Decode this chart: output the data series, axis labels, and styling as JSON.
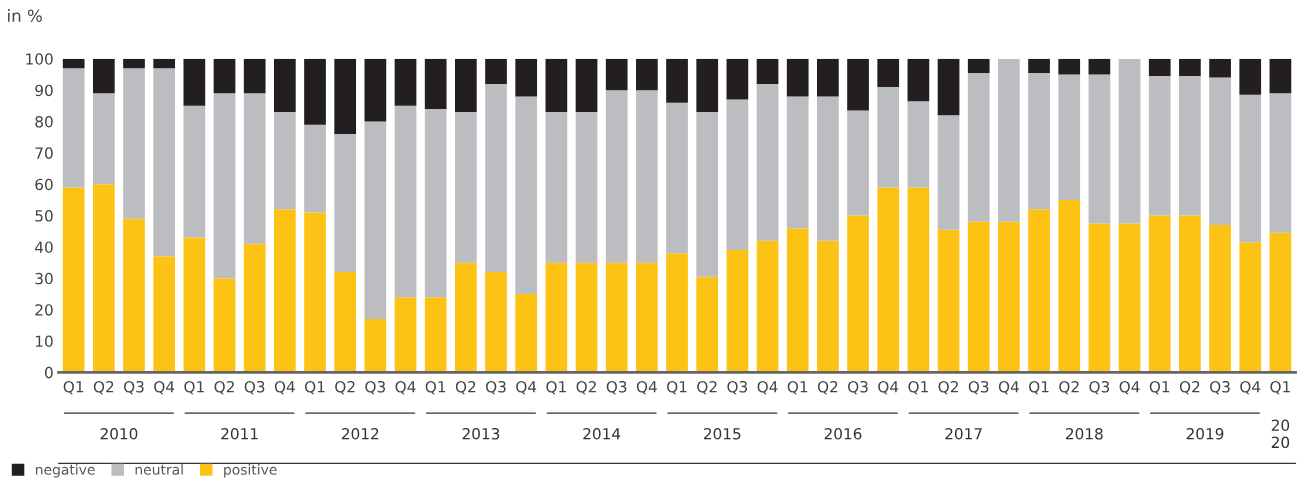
{
  "chart_data": {
    "type": "bar",
    "stacked": true,
    "ylabel": "in %",
    "categories": [
      "Q1",
      "Q2",
      "Q3",
      "Q4",
      "Q1",
      "Q2",
      "Q3",
      "Q4",
      "Q1",
      "Q2",
      "Q3",
      "Q4",
      "Q1",
      "Q2",
      "Q3",
      "Q4",
      "Q1",
      "Q2",
      "Q3",
      "Q4",
      "Q1",
      "Q2",
      "Q3",
      "Q4",
      "Q1",
      "Q2",
      "Q3",
      "Q4",
      "Q1",
      "Q2",
      "Q3",
      "Q4",
      "Q1",
      "Q2",
      "Q3",
      "Q4",
      "Q1",
      "Q2",
      "Q3",
      "Q4",
      "Q1"
    ],
    "series": [
      {
        "name": "positive",
        "color": "#fdc314",
        "values": [
          59,
          60,
          49,
          37,
          43,
          30,
          41,
          52,
          51,
          32,
          17,
          24,
          24,
          35,
          32,
          25,
          35,
          35,
          35,
          35,
          38,
          30.5,
          39,
          42,
          46,
          42,
          50,
          59,
          59,
          45.5,
          48,
          48,
          52,
          55,
          47.5,
          47.5,
          50,
          50,
          47,
          41.5,
          44.5
        ]
      },
      {
        "name": "neutral",
        "color": "#bcbdc1",
        "values": [
          38,
          29,
          48,
          60,
          42,
          59,
          48,
          31,
          28,
          44,
          63,
          61,
          60,
          48,
          60,
          63,
          48,
          48,
          55,
          55,
          48,
          52.5,
          48,
          50,
          42,
          46,
          33.5,
          32,
          27.5,
          36.5,
          47.5,
          52,
          43.5,
          40,
          47.5,
          52.5,
          44.5,
          44.5,
          47,
          47,
          44.5
        ]
      },
      {
        "name": "negative",
        "color": "#231f20",
        "values": [
          3,
          11,
          3,
          3,
          15,
          11,
          11,
          17,
          21,
          24,
          20,
          15,
          16,
          17,
          8,
          12,
          17,
          17,
          10,
          10,
          14,
          17,
          13,
          8,
          12,
          12,
          16.5,
          9,
          13.5,
          18,
          4.5,
          0,
          4.5,
          5,
          5,
          0,
          5.5,
          5.5,
          6,
          11.5,
          11
        ]
      }
    ],
    "annotations": [
      "2010",
      "2011",
      "2012",
      "2013",
      "2014",
      "2015",
      "2016",
      "2017",
      "2018",
      "2019",
      "20\n20"
    ],
    "ylim": [
      0,
      100
    ],
    "yticks": [
      0,
      10,
      20,
      30,
      40,
      50,
      60,
      70,
      80,
      90,
      100
    ],
    "grid": false,
    "legend": "bottom left"
  }
}
